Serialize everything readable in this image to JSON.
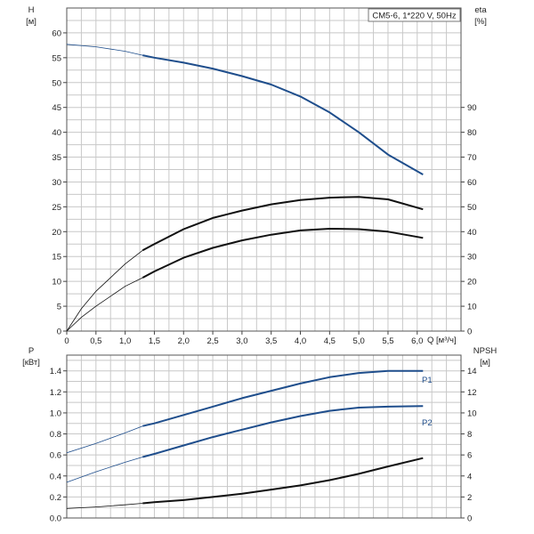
{
  "chart_data": [
    {
      "type": "line",
      "title": "CM5-6, 1*220 V, 50Hz",
      "x": {
        "label": "Q [м³/ч]",
        "ticks": [
          "0",
          "0,5",
          "1,0",
          "1,5",
          "2,0",
          "2,5",
          "3,0",
          "3,5",
          "4,0",
          "4,5",
          "5,0",
          "5,5",
          "6,0"
        ],
        "lim": [
          0,
          6.75
        ]
      },
      "y_left": {
        "label": "H",
        "unit": "[м]",
        "ticks": [
          "0",
          "5",
          "10",
          "15",
          "20",
          "25",
          "30",
          "35",
          "40",
          "45",
          "50",
          "55",
          "60"
        ],
        "lim": [
          0,
          65
        ]
      },
      "y_right": {
        "label": "eta",
        "unit": "[%]",
        "ticks": [
          "0",
          "10",
          "20",
          "30",
          "40",
          "50",
          "60",
          "70",
          "80",
          "90"
        ],
        "lim": [
          0,
          130
        ]
      },
      "grid": true,
      "series": [
        {
          "axis": "left",
          "color": "#1f4e8c",
          "points": [
            [
              0,
              57.7
            ],
            [
              0.5,
              57.2
            ],
            [
              1.0,
              56.3
            ],
            [
              1.3,
              55.5
            ],
            [
              1.5,
              55.0
            ],
            [
              2.0,
              54.0
            ],
            [
              2.5,
              52.8
            ],
            [
              3.0,
              51.3
            ],
            [
              3.5,
              49.6
            ],
            [
              4.0,
              47.2
            ],
            [
              4.5,
              44.0
            ],
            [
              5.0,
              40.0
            ],
            [
              5.5,
              35.5
            ],
            [
              6.1,
              31.5
            ]
          ],
          "start_x": 1.3
        },
        {
          "axis": "right",
          "color": "#111111",
          "points": [
            [
              0,
              0
            ],
            [
              0.25,
              9
            ],
            [
              0.5,
              16
            ],
            [
              1.0,
              27
            ],
            [
              1.3,
              32.5
            ],
            [
              1.5,
              35
            ],
            [
              2.0,
              41
            ],
            [
              2.5,
              45.5
            ],
            [
              3.0,
              48.5
            ],
            [
              3.5,
              51
            ],
            [
              4.0,
              52.7
            ],
            [
              4.5,
              53.7
            ],
            [
              5.0,
              54
            ],
            [
              5.5,
              53
            ],
            [
              6.1,
              49
            ]
          ],
          "start_x": 1.3
        },
        {
          "axis": "right",
          "color": "#111111",
          "points": [
            [
              0,
              0
            ],
            [
              0.25,
              5.5
            ],
            [
              0.5,
              10
            ],
            [
              1.0,
              18
            ],
            [
              1.3,
              21.5
            ],
            [
              1.5,
              24
            ],
            [
              2.0,
              29.5
            ],
            [
              2.5,
              33.5
            ],
            [
              3.0,
              36.5
            ],
            [
              3.5,
              38.8
            ],
            [
              4.0,
              40.5
            ],
            [
              4.5,
              41.2
            ],
            [
              5.0,
              41.0
            ],
            [
              5.5,
              40
            ],
            [
              6.1,
              37.5
            ]
          ],
          "start_x": 1.3
        }
      ]
    },
    {
      "type": "line",
      "x": {
        "lim": [
          0,
          6.75
        ]
      },
      "y_left": {
        "label": "P",
        "unit": "[кВт]",
        "ticks": [
          "0.0",
          "0.2",
          "0.4",
          "0.6",
          "0.8",
          "1.0",
          "1.2",
          "1.4"
        ],
        "lim": [
          0,
          1.55
        ]
      },
      "y_right": {
        "label": "NPSH",
        "unit": "[м]",
        "ticks": [
          "0",
          "2",
          "4",
          "6",
          "8",
          "10",
          "12",
          "14"
        ],
        "lim": [
          0,
          15.5
        ]
      },
      "grid": true,
      "series": [
        {
          "name": "P1",
          "axis": "left",
          "color": "#1f4e8c",
          "points": [
            [
              0,
              0.62
            ],
            [
              0.5,
              0.71
            ],
            [
              1.0,
              0.81
            ],
            [
              1.3,
              0.875
            ],
            [
              1.5,
              0.9
            ],
            [
              2.0,
              0.98
            ],
            [
              2.5,
              1.06
            ],
            [
              3.0,
              1.14
            ],
            [
              3.5,
              1.21
            ],
            [
              4.0,
              1.28
            ],
            [
              4.5,
              1.34
            ],
            [
              5.0,
              1.38
            ],
            [
              5.5,
              1.4
            ],
            [
              6.1,
              1.4
            ]
          ],
          "start_x": 1.3
        },
        {
          "name": "P2",
          "axis": "left",
          "color": "#1f4e8c",
          "points": [
            [
              0,
              0.34
            ],
            [
              0.5,
              0.44
            ],
            [
              1.0,
              0.53
            ],
            [
              1.3,
              0.58
            ],
            [
              1.5,
              0.61
            ],
            [
              2.0,
              0.69
            ],
            [
              2.5,
              0.77
            ],
            [
              3.0,
              0.84
            ],
            [
              3.5,
              0.91
            ],
            [
              4.0,
              0.97
            ],
            [
              4.5,
              1.02
            ],
            [
              5.0,
              1.05
            ],
            [
              5.5,
              1.06
            ],
            [
              6.1,
              1.065
            ]
          ],
          "start_x": 1.3
        },
        {
          "axis": "right",
          "color": "#111111",
          "points": [
            [
              0,
              0.9
            ],
            [
              0.5,
              1.05
            ],
            [
              1.0,
              1.25
            ],
            [
              1.3,
              1.4
            ],
            [
              1.5,
              1.5
            ],
            [
              2.0,
              1.7
            ],
            [
              2.5,
              2.0
            ],
            [
              3.0,
              2.3
            ],
            [
              3.5,
              2.7
            ],
            [
              4.0,
              3.1
            ],
            [
              4.5,
              3.6
            ],
            [
              5.0,
              4.2
            ],
            [
              5.5,
              4.9
            ],
            [
              6.1,
              5.7
            ]
          ],
          "start_x": 1.3
        }
      ]
    }
  ]
}
